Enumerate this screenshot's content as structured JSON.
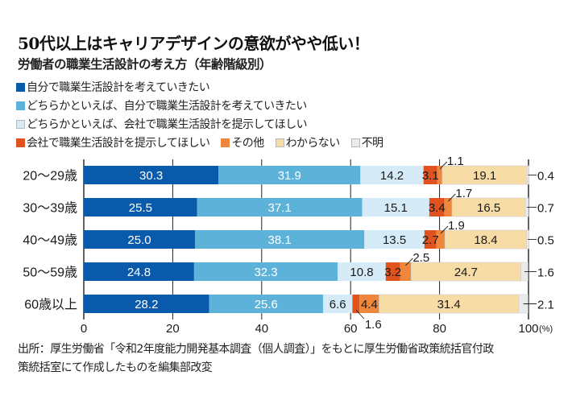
{
  "title": "50代以上はキャリアデザインの意欲がやや低い！",
  "subtitle": "労働者の職業生活設計の考え方（年齢階級別）",
  "source_lines": [
    "出所：厚生労働省「令和2年度能力開発基本調査（個人調査）」をもとに厚生労働省政策統括官付政",
    "策統括室にて作成したものを編集部改変"
  ],
  "legend_rows": [
    [
      0
    ],
    [
      1
    ],
    [
      2
    ],
    [
      3,
      4,
      5,
      6
    ]
  ],
  "chart_data": {
    "type": "bar",
    "orientation": "horizontal",
    "stacked": true,
    "title": "労働者の職業生活設計の考え方（年齢階級別）",
    "xlabel": "",
    "ylabel": "",
    "x_unit": "(%)",
    "xlim": [
      0,
      100
    ],
    "xticks": [
      0,
      20,
      40,
      60,
      80,
      100
    ],
    "xtick_labels": [
      "0",
      "20",
      "40",
      "60",
      "80",
      "100"
    ],
    "grid": true,
    "legend_position": "top",
    "categories": [
      "20〜29歳",
      "30〜39歳",
      "40〜49歳",
      "50〜59歳",
      "60歳以上"
    ],
    "series": [
      {
        "name": "自分で職業生活設計を考えていきたい",
        "color": "#0a5aab",
        "label_color": "#ffffff",
        "values": [
          30.3,
          25.5,
          25.0,
          24.8,
          28.2
        ]
      },
      {
        "name": "どちらかといえば、自分で職業生活設計を考えていきたい",
        "color": "#5cb2d9",
        "label_color": "#ffffff",
        "values": [
          31.9,
          37.1,
          38.1,
          32.3,
          25.6
        ]
      },
      {
        "name": "どちらかといえば、会社で職業生活設計を提示してほしい",
        "color": "#d6ebf8",
        "label_color": "#1a1a1a",
        "values": [
          14.2,
          15.1,
          13.5,
          10.8,
          6.6
        ]
      },
      {
        "name": "会社で職業生活設計を提示してほしい",
        "color": "#e0531f",
        "label_color": "#1a1a1a",
        "values": [
          3.1,
          3.4,
          2.7,
          3.2,
          1.6
        ]
      },
      {
        "name": "その他",
        "color": "#ee873c",
        "label_color": "#1a1a1a",
        "values": [
          1.1,
          1.7,
          1.9,
          2.5,
          4.4
        ]
      },
      {
        "name": "わからない",
        "color": "#f7dca6",
        "label_color": "#1a1a1a",
        "values": [
          19.1,
          16.5,
          18.4,
          24.7,
          31.4
        ]
      },
      {
        "name": "不明",
        "color": "#ebebeb",
        "label_color": "#1a1a1a",
        "values": [
          0.4,
          0.7,
          0.5,
          1.6,
          2.1
        ]
      }
    ],
    "callouts": [
      {
        "row": 0,
        "series": 4,
        "text": "1.1",
        "side": "above"
      },
      {
        "row": 1,
        "series": 4,
        "text": "1.7",
        "side": "above"
      },
      {
        "row": 2,
        "series": 4,
        "text": "1.9",
        "side": "above"
      },
      {
        "row": 3,
        "series": 4,
        "text": "2.5",
        "side": "above"
      },
      {
        "row": 4,
        "series": 3,
        "text": "1.6",
        "side": "below"
      },
      {
        "row": 0,
        "series": 6,
        "text": "0.4",
        "side": "right"
      },
      {
        "row": 1,
        "series": 6,
        "text": "0.7",
        "side": "right"
      },
      {
        "row": 2,
        "series": 6,
        "text": "0.5",
        "side": "right"
      },
      {
        "row": 3,
        "series": 6,
        "text": "1.6",
        "side": "right"
      },
      {
        "row": 4,
        "series": 6,
        "text": "2.1",
        "side": "right"
      }
    ]
  }
}
